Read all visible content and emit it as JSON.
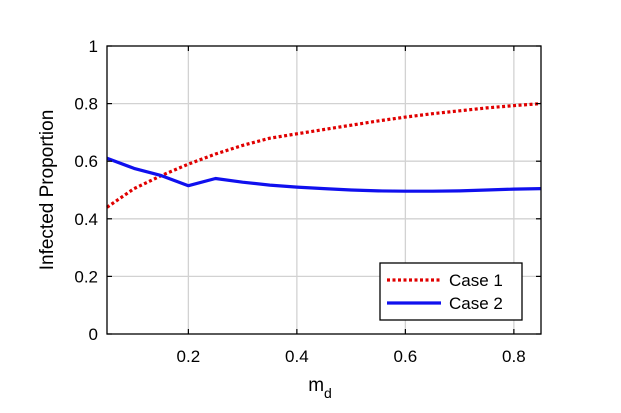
{
  "chart_data": {
    "type": "line",
    "title": "",
    "xlabel": "m",
    "xlabel_subscript": "d",
    "ylabel": "Infected Proportion",
    "xlim": [
      0.05,
      0.85
    ],
    "ylim": [
      0,
      1
    ],
    "xticks": [
      0.2,
      0.4,
      0.6,
      0.8
    ],
    "xtick_labels": [
      "0.2",
      "0.4",
      "0.6",
      "0.8"
    ],
    "yticks": [
      0,
      0.2,
      0.4,
      0.6,
      0.8,
      1
    ],
    "ytick_labels": [
      "0",
      "0.2",
      "0.4",
      "0.6",
      "0.8",
      "1"
    ],
    "grid": true,
    "legend_position": "bottom-right",
    "series": [
      {
        "name": "Case 1",
        "color": "#e00000",
        "line_style": "dotted",
        "x": [
          0.05,
          0.1,
          0.15,
          0.2,
          0.25,
          0.3,
          0.35,
          0.4,
          0.45,
          0.5,
          0.55,
          0.6,
          0.65,
          0.7,
          0.75,
          0.8,
          0.85
        ],
        "y": [
          0.44,
          0.505,
          0.55,
          0.59,
          0.625,
          0.655,
          0.68,
          0.695,
          0.71,
          0.725,
          0.74,
          0.753,
          0.765,
          0.775,
          0.785,
          0.793,
          0.8
        ]
      },
      {
        "name": "Case 2",
        "color": "#1010ee",
        "line_style": "solid",
        "x": [
          0.05,
          0.1,
          0.15,
          0.2,
          0.25,
          0.3,
          0.35,
          0.4,
          0.45,
          0.5,
          0.55,
          0.6,
          0.65,
          0.7,
          0.75,
          0.8,
          0.85
        ],
        "y": [
          0.61,
          0.575,
          0.55,
          0.515,
          0.54,
          0.527,
          0.517,
          0.51,
          0.505,
          0.5,
          0.497,
          0.496,
          0.496,
          0.497,
          0.5,
          0.503,
          0.505
        ]
      }
    ]
  }
}
